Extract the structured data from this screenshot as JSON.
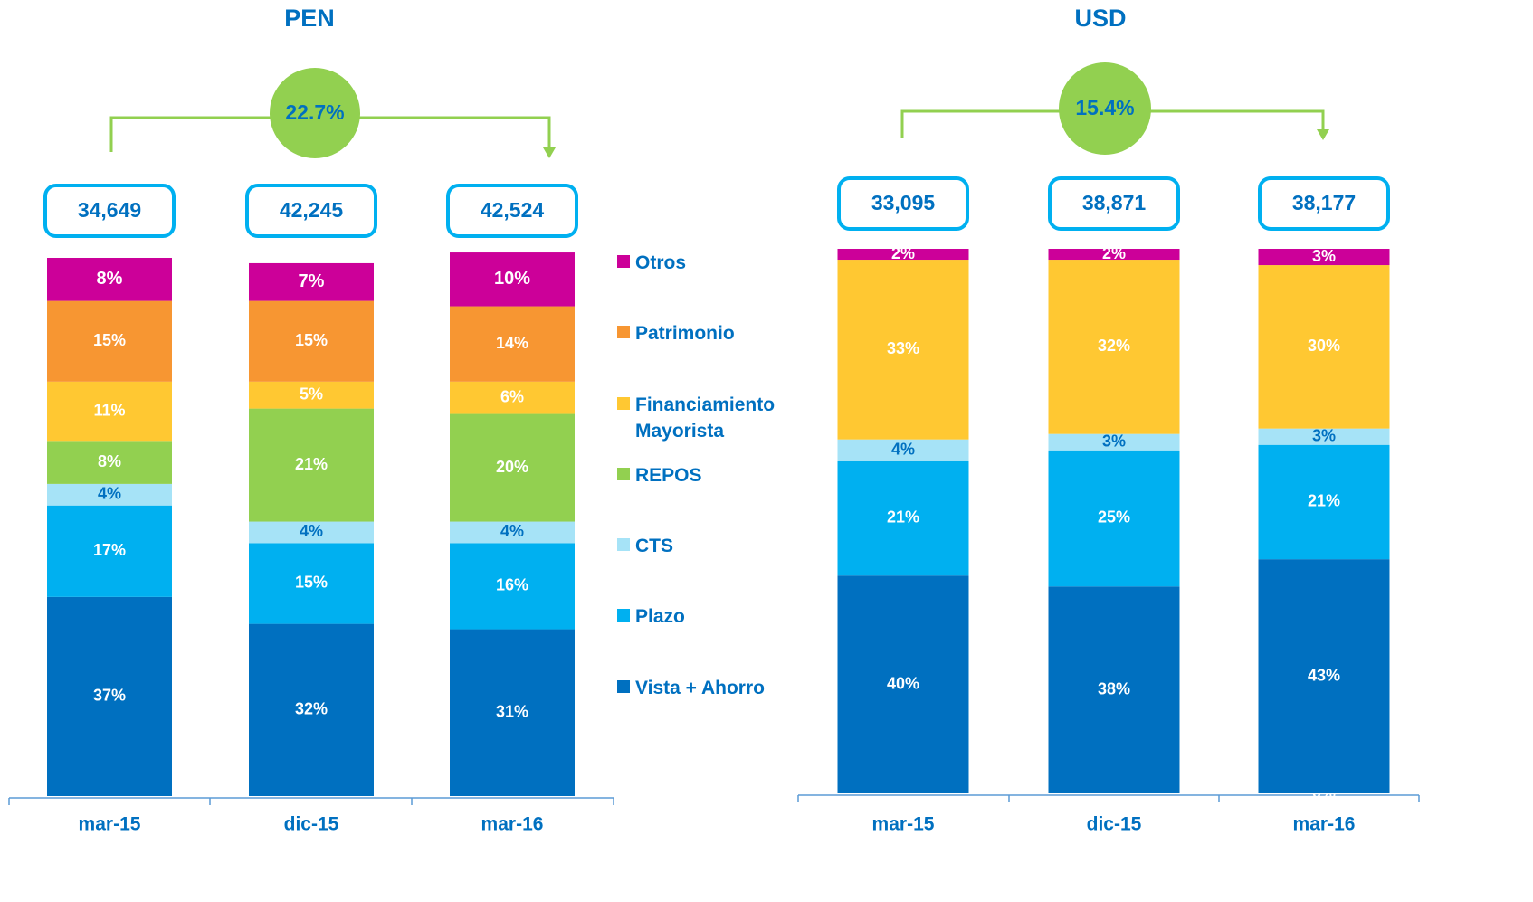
{
  "chart_data": [
    {
      "type": "stacked_bar",
      "title": "PEN",
      "categories": [
        "mar-15",
        "dic-15",
        "mar-16"
      ],
      "series": [
        {
          "name": "Vista + Ahorro",
          "color": "#0070c0",
          "values": [
            37,
            32,
            31
          ],
          "value_labels": [
            "37%",
            "32%",
            "31%"
          ]
        },
        {
          "name": "Plazo",
          "color": "#00b0f0",
          "values": [
            17,
            15,
            16
          ],
          "value_labels": [
            "17%",
            "15%",
            "16%"
          ]
        },
        {
          "name": "CTS",
          "color": "#a6e3f7",
          "values": [
            4,
            4,
            4
          ],
          "value_labels": [
            "4%",
            "4%",
            "4%"
          ]
        },
        {
          "name": "REPOS",
          "color": "#92d050",
          "values": [
            8,
            21,
            20
          ],
          "value_labels": [
            "8%",
            "21%",
            "20%"
          ]
        },
        {
          "name": "Financiamiento Mayorista",
          "color": "#ffc832",
          "values": [
            11,
            5,
            6
          ],
          "value_labels": [
            "11%",
            "5%",
            "6%"
          ]
        },
        {
          "name": "Patrimonio",
          "color": "#f79632",
          "values": [
            15,
            15,
            14
          ],
          "value_labels": [
            "15%",
            "15%",
            "14%"
          ]
        },
        {
          "name": "Otros",
          "color": "#cc0099",
          "values": [
            8,
            7,
            10
          ],
          "value_labels": [
            "8%",
            "7%",
            "10%"
          ]
        }
      ],
      "totals": {
        "values": [
          34649,
          42245,
          42524
        ],
        "value_labels": [
          "34,649",
          "42,245",
          "42,524"
        ]
      },
      "growth": {
        "value": 22.7,
        "label": "22.7%"
      }
    },
    {
      "type": "stacked_bar",
      "title": "USD",
      "categories": [
        "mar-15",
        "dic-15",
        "mar-16"
      ],
      "series": [
        {
          "color": "#92d050",
          "values": [
            null,
            null,
            0
          ],
          "value_labels": [
            null,
            null,
            "0%"
          ]
        },
        {
          "color": "#0070c0",
          "values": [
            40,
            38,
            43
          ],
          "value_labels": [
            "40%",
            "38%",
            "43%"
          ]
        },
        {
          "color": "#00b0f0",
          "values": [
            21,
            25,
            21
          ],
          "value_labels": [
            "21%",
            "25%",
            "21%"
          ]
        },
        {
          "color": "#a6e3f7",
          "values": [
            4,
            3,
            3
          ],
          "value_labels": [
            "4%",
            "3%",
            "3%"
          ]
        },
        {
          "color": "#ffc832",
          "values": [
            33,
            32,
            30
          ],
          "value_labels": [
            "33%",
            "32%",
            "30%"
          ]
        },
        {
          "color": "#cc0099",
          "values": [
            2,
            2,
            3
          ],
          "value_labels": [
            "2%",
            "2%",
            "3%"
          ]
        }
      ],
      "totals": {
        "values": [
          33095,
          38871,
          38177
        ],
        "value_labels": [
          "33,095",
          "38,871",
          "38,177"
        ]
      },
      "growth": {
        "value": 15.4,
        "label": "15.4%"
      }
    }
  ]
}
